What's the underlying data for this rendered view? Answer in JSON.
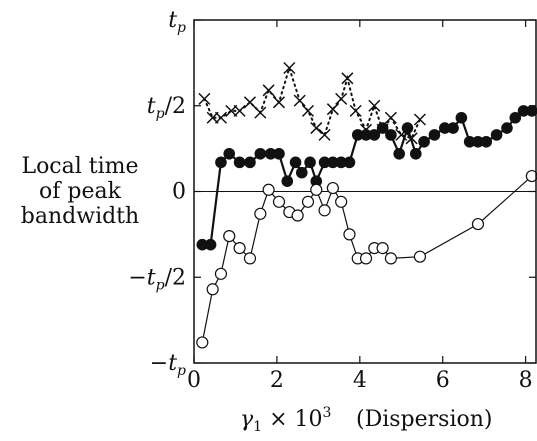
{
  "chart_data": {
    "type": "scatter",
    "title": "",
    "xlabel_text": "(Dispersion)",
    "ylabel_lines": [
      "Local time",
      "of peak",
      "bandwidth"
    ],
    "xlim": [
      0,
      8.25
    ],
    "ylim": [
      -1,
      1
    ],
    "x_ticks": [
      0,
      2,
      4,
      6,
      8
    ],
    "y_ticks": [
      {
        "value": 1,
        "label": "t_p"
      },
      {
        "value": 0.5,
        "label": "t_p/2"
      },
      {
        "value": 0,
        "label": "0"
      },
      {
        "value": -0.5,
        "label": "-t_p/2"
      },
      {
        "value": -1,
        "label": "-t_p"
      }
    ],
    "zero_line": true,
    "series": [
      {
        "marker": "x",
        "line": "dotted",
        "color": "#111111",
        "x": [
          0.25,
          0.45,
          0.65,
          0.9,
          1.1,
          1.35,
          1.6,
          1.8,
          2.05,
          2.3,
          2.55,
          2.75,
          2.95,
          3.15,
          3.35,
          3.55,
          3.7,
          3.9,
          4.15,
          4.35,
          4.55,
          4.75,
          5.0,
          5.25,
          5.45
        ],
        "y": [
          0.54,
          0.43,
          0.43,
          0.47,
          0.47,
          0.52,
          0.46,
          0.59,
          0.52,
          0.72,
          0.53,
          0.47,
          0.37,
          0.33,
          0.48,
          0.54,
          0.66,
          0.47,
          0.36,
          0.5,
          0.36,
          0.43,
          0.33,
          0.31,
          0.42
        ]
      },
      {
        "marker": "filled-circle",
        "line": "solid",
        "color": "#111111",
        "x": [
          0.2,
          0.4,
          0.65,
          0.85,
          1.1,
          1.35,
          1.6,
          1.85,
          2.05,
          2.25,
          2.45,
          2.6,
          2.8,
          2.95,
          3.15,
          3.35,
          3.55,
          3.75,
          3.95,
          4.15,
          4.35,
          4.55,
          4.75,
          4.95,
          5.15,
          5.35,
          5.55,
          5.8,
          6.05,
          6.25,
          6.45,
          6.65,
          6.85,
          7.05,
          7.3,
          7.55,
          7.75,
          7.95,
          8.15
        ],
        "y": [
          -0.31,
          -0.31,
          0.17,
          0.22,
          0.17,
          0.17,
          0.22,
          0.22,
          0.22,
          0.06,
          0.17,
          0.11,
          0.17,
          0.06,
          0.17,
          0.17,
          0.17,
          0.17,
          0.33,
          0.33,
          0.33,
          0.37,
          0.33,
          0.22,
          0.37,
          0.22,
          0.29,
          0.33,
          0.37,
          0.37,
          0.43,
          0.29,
          0.29,
          0.29,
          0.33,
          0.37,
          0.43,
          0.47,
          0.47
        ]
      },
      {
        "marker": "open-circle",
        "line": "solid",
        "color": "#111111",
        "x": [
          0.2,
          0.45,
          0.65,
          0.85,
          1.1,
          1.35,
          1.6,
          1.8,
          2.05,
          2.3,
          2.5,
          2.75,
          2.95,
          3.15,
          3.35,
          3.55,
          3.75,
          3.95,
          4.15,
          4.35,
          4.55,
          4.75,
          5.45,
          6.85,
          8.15
        ],
        "y": [
          -0.88,
          -0.57,
          -0.48,
          -0.26,
          -0.33,
          -0.39,
          -0.13,
          0.01,
          -0.06,
          -0.12,
          -0.14,
          -0.06,
          0.01,
          -0.11,
          0.02,
          -0.06,
          -0.25,
          -0.39,
          -0.39,
          -0.33,
          -0.33,
          -0.39,
          -0.38,
          -0.19,
          0.09
        ]
      }
    ]
  }
}
